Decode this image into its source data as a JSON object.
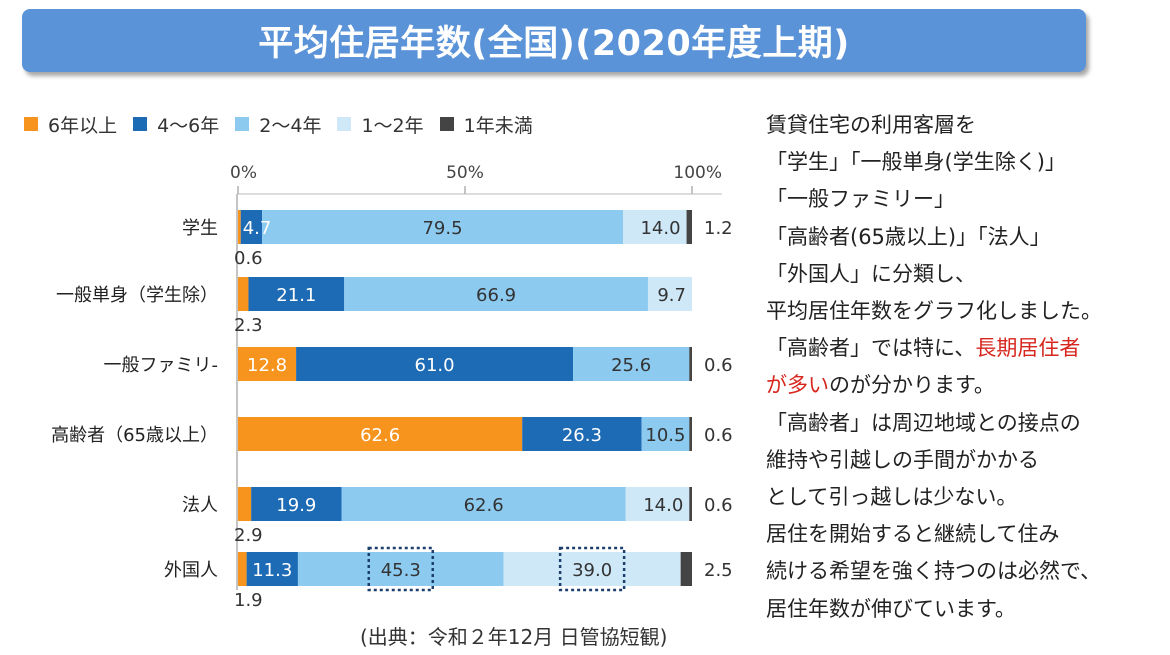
{
  "title": "平均住居年数(全国)(2020年度上期)",
  "source": "(出典：令和２年12月 日管協短観)",
  "description_lines": [
    "賃貸住宅の利用客層を",
    "「学生」「一般単身(学生除く)」",
    "「一般ファミリー」",
    "「高齢者(65歳以上)」「法人」",
    "「外国人」に分類し、",
    "平均居住年数をグラフ化しました。",
    "「高齢者」では特に、"
  ],
  "highlight_line_suffix": "長期居住者",
  "highlight_line2_red": "が多い",
  "highlight_line2_rest": "のが分かります。",
  "description_lines_after": [
    "「高齢者」は周辺地域との接点の",
    "維持や引越しの手間がかかる",
    "として引っ越しは少ない。",
    "居住を開始すると継続して住み",
    "続ける希望を強く持つのは必然で、",
    "居住年数が伸びています。"
  ],
  "colors": {
    "six_plus": "#f7941d",
    "four_six": "#1d6ab5",
    "two_four": "#8ccaf0",
    "one_two": "#cfe8f8",
    "under_one": "#444444",
    "highlight": "#d7261e",
    "banner": "#5b93d8"
  },
  "chart_data": {
    "type": "bar",
    "orientation": "horizontal",
    "stacked": true,
    "xlim": [
      0,
      100
    ],
    "x_ticks": [
      "0%",
      "50%",
      "100%"
    ],
    "categories": [
      "学生",
      "一般単身(学生除)",
      "一般ファミリー",
      "高齢者(65歳以上)",
      "法人",
      "外国人"
    ],
    "series": [
      {
        "name": "6年以上",
        "values": [
          0.6,
          2.3,
          12.8,
          62.6,
          2.9,
          1.9
        ]
      },
      {
        "name": "4～6年",
        "values": [
          4.7,
          21.1,
          61.0,
          26.3,
          19.9,
          11.3
        ]
      },
      {
        "name": "2～4年",
        "values": [
          79.5,
          66.9,
          25.6,
          10.5,
          62.6,
          45.3
        ]
      },
      {
        "name": "1～2年",
        "values": [
          14.0,
          9.7,
          0.0,
          0.0,
          14.0,
          39.0
        ]
      },
      {
        "name": "1年未満",
        "values": [
          1.2,
          0.0,
          0.6,
          0.6,
          0.6,
          2.5
        ]
      }
    ],
    "category_labels": [
      "学生",
      "一般単身（学生除）",
      "一般ファミリ-",
      "高齢者（65歳以上）",
      "法人",
      "外国人"
    ],
    "data_labels": [
      [
        {
          "series": 1,
          "text": "4.7",
          "pos": "in"
        },
        {
          "series": 2,
          "text": "79.5",
          "pos": "in"
        },
        {
          "series": 3,
          "text": "14.0",
          "pos": "in-right"
        },
        {
          "series": 4,
          "text": "1.2",
          "pos": "right"
        },
        {
          "series": 0,
          "text": "0.6",
          "pos": "below"
        }
      ],
      [
        {
          "series": 1,
          "text": "21.1",
          "pos": "in"
        },
        {
          "series": 2,
          "text": "66.9",
          "pos": "in"
        },
        {
          "series": 3,
          "text": "9.7",
          "pos": "in-right"
        },
        {
          "series": 0,
          "text": "2.3",
          "pos": "below"
        }
      ],
      [
        {
          "series": 0,
          "text": "12.8",
          "pos": "in"
        },
        {
          "series": 1,
          "text": "61.0",
          "pos": "in"
        },
        {
          "series": 2,
          "text": "25.6",
          "pos": "in"
        },
        {
          "series": 4,
          "text": "0.6",
          "pos": "right"
        }
      ],
      [
        {
          "series": 0,
          "text": "62.6",
          "pos": "in"
        },
        {
          "series": 1,
          "text": "26.3",
          "pos": "in"
        },
        {
          "series": 2,
          "text": "10.5",
          "pos": "in"
        },
        {
          "series": 4,
          "text": "0.6",
          "pos": "right"
        }
      ],
      [
        {
          "series": 1,
          "text": "19.9",
          "pos": "in"
        },
        {
          "series": 2,
          "text": "62.6",
          "pos": "in"
        },
        {
          "series": 3,
          "text": "14.0",
          "pos": "in-right"
        },
        {
          "series": 4,
          "text": "0.6",
          "pos": "right"
        },
        {
          "series": 0,
          "text": "2.9",
          "pos": "below"
        }
      ],
      [
        {
          "series": 1,
          "text": "11.3",
          "pos": "in"
        },
        {
          "series": 2,
          "text": "45.3",
          "pos": "in-boxed"
        },
        {
          "series": 3,
          "text": "39.0",
          "pos": "in-boxed"
        },
        {
          "series": 4,
          "text": "2.5",
          "pos": "right"
        },
        {
          "series": 0,
          "text": "1.9",
          "pos": "below"
        }
      ]
    ]
  }
}
